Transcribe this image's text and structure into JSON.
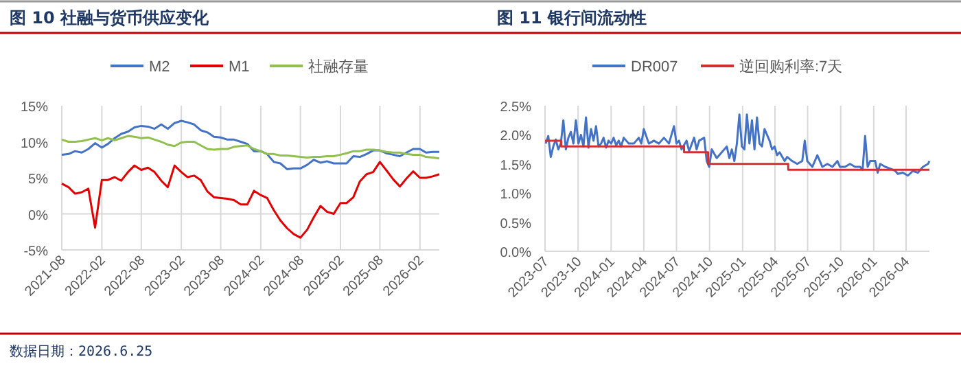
{
  "chart_data": [
    {
      "type": "line",
      "title": "图 10 社融与货币供应变化",
      "legend": "top",
      "grid": "x",
      "marker": "none",
      "line_style": "solid",
      "x": [
        "2021-08",
        "2021-09",
        "2021-10",
        "2021-11",
        "2021-12",
        "2022-01",
        "2022-02",
        "2022-03",
        "2022-04",
        "2022-05",
        "2022-06",
        "2022-07",
        "2022-08",
        "2022-09",
        "2022-10",
        "2022-11",
        "2022-12",
        "2023-01",
        "2023-02",
        "2023-03",
        "2023-04",
        "2023-05",
        "2023-06",
        "2023-07",
        "2023-08",
        "2023-09",
        "2023-10",
        "2023-11",
        "2023-12",
        "2024-01",
        "2024-02",
        "2024-03",
        "2024-04",
        "2024-05",
        "2024-06",
        "2024-07",
        "2024-08",
        "2024-09",
        "2024-10",
        "2024-11",
        "2024-12",
        "2025-01",
        "2025-02",
        "2025-03",
        "2025-04",
        "2025-05",
        "2025-06",
        "2025-07",
        "2025-08",
        "2025-09",
        "2025-10",
        "2025-11",
        "2025-12",
        "2026-01",
        "2026-02",
        "2026-03",
        "2026-04",
        "2026-05"
      ],
      "series": [
        {
          "name": "M2",
          "color": "#4472c4",
          "values": [
            8.2,
            8.3,
            8.7,
            8.5,
            9.0,
            9.8,
            9.2,
            9.7,
            10.5,
            11.1,
            11.4,
            12.0,
            12.2,
            12.1,
            11.8,
            12.4,
            11.8,
            12.6,
            12.9,
            12.7,
            12.4,
            11.6,
            11.3,
            10.7,
            10.6,
            10.3,
            10.3,
            10.0,
            9.7,
            8.7,
            8.7,
            8.3,
            7.2,
            7.0,
            6.2,
            6.3,
            6.3,
            6.8,
            7.5,
            7.1,
            7.3,
            7.0,
            7.0,
            7.0,
            8.0,
            7.9,
            8.3,
            8.8,
            8.8,
            8.4,
            8.2,
            8.0,
            8.5,
            9.0,
            9.0,
            8.5,
            8.6,
            8.6
          ]
        },
        {
          "name": "M1",
          "color": "#e00000",
          "values": [
            4.2,
            3.7,
            2.8,
            3.0,
            3.5,
            -1.9,
            4.7,
            4.7,
            5.1,
            4.6,
            5.8,
            6.7,
            6.1,
            6.4,
            5.8,
            4.6,
            3.7,
            6.7,
            5.8,
            5.1,
            5.3,
            4.7,
            3.1,
            2.3,
            2.2,
            2.1,
            1.9,
            1.3,
            1.3,
            3.2,
            2.6,
            2.2,
            0.5,
            -0.9,
            -2.0,
            -2.8,
            -3.3,
            -2.2,
            -0.5,
            1.1,
            0.3,
            0.0,
            1.5,
            1.5,
            2.3,
            4.5,
            5.5,
            5.8,
            7.2,
            6.0,
            4.8,
            3.8,
            4.9,
            5.9,
            5.0,
            5.0,
            5.2,
            5.5
          ]
        },
        {
          "name": "社融存量",
          "color": "#92c04f",
          "values": [
            10.3,
            10.0,
            10.0,
            10.1,
            10.3,
            10.5,
            10.2,
            10.5,
            10.2,
            10.5,
            10.8,
            10.7,
            10.5,
            10.6,
            10.3,
            10.0,
            9.6,
            9.4,
            9.9,
            10.0,
            10.0,
            9.5,
            9.0,
            8.9,
            9.0,
            9.0,
            9.3,
            9.4,
            9.5,
            9.0,
            8.7,
            8.3,
            8.3,
            8.1,
            8.1,
            8.0,
            7.9,
            7.8,
            7.9,
            7.9,
            8.0,
            8.0,
            8.2,
            8.4,
            8.7,
            8.7,
            8.9,
            8.9,
            8.8,
            8.6,
            8.5,
            8.5,
            8.3,
            8.2,
            8.2,
            7.9,
            7.8,
            7.7
          ]
        }
      ],
      "xlim": [
        "2021-08",
        "2026-05"
      ],
      "xticks": [
        "2021-08",
        "2022-02",
        "2022-08",
        "2023-02",
        "2023-08",
        "2024-02",
        "2024-08",
        "2025-02",
        "2025-08",
        "2026-02"
      ],
      "ylim": [
        -5,
        15
      ],
      "yticks": [
        {
          "value": -5,
          "label": "-5%"
        },
        {
          "value": 0,
          "label": "0%"
        },
        {
          "value": 5,
          "label": "5%"
        },
        {
          "value": 10,
          "label": "10%"
        },
        {
          "value": 15,
          "label": "15%"
        }
      ],
      "ref_lines": [
        {
          "axis": "y",
          "value": 0,
          "color": "#d9d9d9"
        }
      ],
      "annotations": [
        "数据日期：2026.6.25"
      ]
    },
    {
      "type": "line",
      "title": "图 11 银行间流动性",
      "legend": "top",
      "grid": "x",
      "marker": "none",
      "line_style": "solid",
      "series": [
        {
          "name": "DR007",
          "color": "#4472c4",
          "x": [
            "2023-07-03",
            "2023-07-10",
            "2023-07-17",
            "2023-07-24",
            "2023-07-31",
            "2023-08-07",
            "2023-08-14",
            "2023-08-21",
            "2023-08-28",
            "2023-09-04",
            "2023-09-11",
            "2023-09-18",
            "2023-09-25",
            "2023-10-02",
            "2023-10-09",
            "2023-10-16",
            "2023-10-23",
            "2023-10-30",
            "2023-11-06",
            "2023-11-13",
            "2023-11-20",
            "2023-11-27",
            "2023-12-04",
            "2023-12-11",
            "2023-12-18",
            "2023-12-25",
            "2024-01-01",
            "2024-01-08",
            "2024-01-15",
            "2024-01-22",
            "2024-01-29",
            "2024-02-05",
            "2024-02-19",
            "2024-03-04",
            "2024-03-11",
            "2024-03-18",
            "2024-03-25",
            "2024-04-01",
            "2024-04-15",
            "2024-04-29",
            "2024-05-13",
            "2024-05-27",
            "2024-06-10",
            "2024-06-24",
            "2024-07-01",
            "2024-07-08",
            "2024-07-15",
            "2024-07-29",
            "2024-08-05",
            "2024-08-19",
            "2024-08-26",
            "2024-09-02",
            "2024-09-16",
            "2024-09-23",
            "2024-09-30",
            "2024-10-07",
            "2024-10-21",
            "2024-11-04",
            "2024-11-18",
            "2024-11-25",
            "2024-12-02",
            "2024-12-09",
            "2024-12-16",
            "2024-12-23",
            "2024-12-30",
            "2025-01-06",
            "2025-01-13",
            "2025-01-20",
            "2025-01-27",
            "2025-02-03",
            "2025-02-10",
            "2025-02-17",
            "2025-02-24",
            "2025-03-03",
            "2025-03-17",
            "2025-03-24",
            "2025-03-31",
            "2025-04-07",
            "2025-04-14",
            "2025-04-28",
            "2025-05-05",
            "2025-05-19",
            "2025-06-02",
            "2025-06-16",
            "2025-06-23",
            "2025-06-30",
            "2025-07-14",
            "2025-07-28",
            "2025-08-11",
            "2025-08-25",
            "2025-09-08",
            "2025-09-22",
            "2025-09-29",
            "2025-10-13",
            "2025-10-27",
            "2025-11-10",
            "2025-11-24",
            "2025-12-01",
            "2025-12-08",
            "2025-12-15",
            "2025-12-22",
            "2026-01-05",
            "2026-01-12",
            "2026-01-19",
            "2026-02-02",
            "2026-02-16",
            "2026-03-02",
            "2026-03-09",
            "2026-03-23",
            "2026-04-06",
            "2026-04-20",
            "2026-05-04",
            "2026-05-18",
            "2026-06-01",
            "2026-06-05"
          ],
          "values": [
            1.85,
            1.98,
            1.62,
            1.8,
            1.92,
            1.75,
            1.85,
            2.25,
            1.75,
            1.95,
            2.05,
            1.85,
            2.25,
            1.85,
            2.0,
            1.8,
            2.3,
            1.78,
            2.1,
            1.9,
            2.15,
            1.8,
            1.85,
            1.95,
            1.78,
            1.9,
            1.85,
            1.95,
            1.82,
            1.9,
            1.8,
            1.95,
            1.85,
            1.85,
            1.9,
            1.95,
            1.85,
            2.1,
            1.85,
            1.9,
            1.85,
            1.95,
            1.85,
            2.15,
            1.85,
            1.9,
            1.75,
            1.9,
            1.72,
            1.95,
            1.75,
            1.9,
            1.95,
            1.55,
            1.45,
            1.75,
            1.6,
            1.7,
            1.8,
            1.6,
            1.75,
            1.55,
            1.85,
            2.35,
            1.8,
            1.75,
            2.35,
            1.85,
            2.25,
            1.75,
            2.3,
            1.85,
            1.8,
            2.1,
            1.9,
            1.75,
            1.8,
            1.65,
            1.7,
            1.55,
            1.62,
            1.55,
            1.5,
            1.55,
            1.9,
            1.55,
            1.45,
            1.65,
            1.45,
            1.5,
            1.45,
            1.55,
            1.45,
            1.45,
            1.5,
            1.45,
            1.45,
            1.4,
            1.98,
            1.45,
            1.55,
            1.55,
            1.35,
            1.5,
            1.45,
            1.42,
            1.38,
            1.33,
            1.35,
            1.3,
            1.38,
            1.35,
            1.45,
            1.5,
            1.55
          ]
        },
        {
          "name": "逆回购利率:7天",
          "color": "#d03030",
          "type": "step",
          "x": [
            "2023-07-01",
            "2023-08-15",
            "2024-07-22",
            "2024-09-27",
            "2025-05-08",
            "2026-06-05"
          ],
          "values": [
            1.9,
            1.8,
            1.7,
            1.5,
            1.4,
            1.4
          ]
        }
      ],
      "xlim": [
        "2023-07-01",
        "2026-06-05"
      ],
      "xticks": [
        "2023-07",
        "2023-10",
        "2024-01",
        "2024-04",
        "2024-07",
        "2024-10",
        "2025-01",
        "2025-04",
        "2025-07",
        "2025-10",
        "2026-01",
        "2026-04"
      ],
      "ylim": [
        0,
        2.5
      ],
      "yticks": [
        {
          "value": 0,
          "label": "0.0%"
        },
        {
          "value": 0.5,
          "label": "0.5%"
        },
        {
          "value": 1,
          "label": "1.0%"
        },
        {
          "value": 1.5,
          "label": "1.5%"
        },
        {
          "value": 2,
          "label": "2.0%"
        },
        {
          "value": 2.5,
          "label": "2.5%"
        }
      ]
    }
  ]
}
